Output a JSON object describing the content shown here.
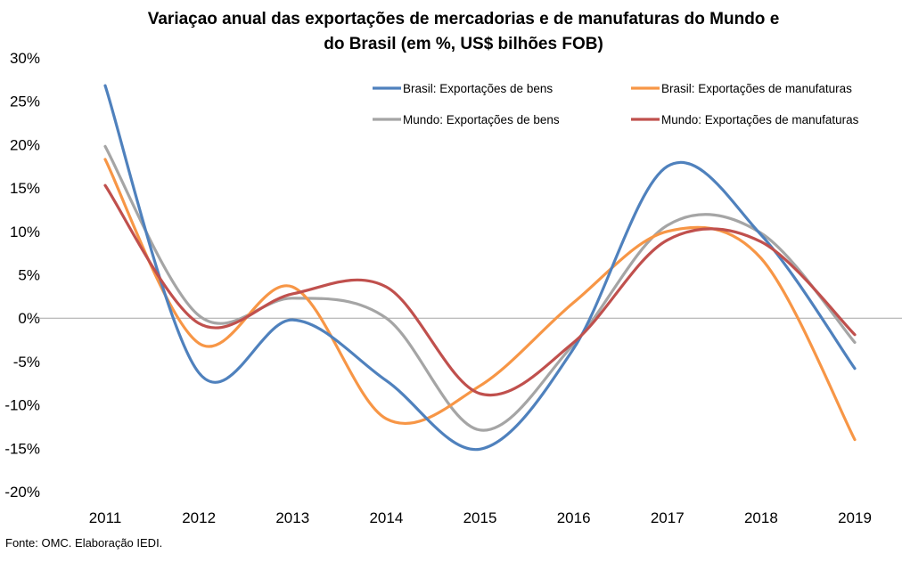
{
  "chart_data": {
    "type": "line",
    "title_line1": "Variaçao anual das exportações de mercadorias e de manufaturas do Mundo e",
    "title_line2": "do Brasil (em %, US$ bilhões FOB)",
    "categories": [
      "2011",
      "2012",
      "2013",
      "2014",
      "2015",
      "2016",
      "2017",
      "2018",
      "2019"
    ],
    "ylim": [
      -20,
      30
    ],
    "yticks": [
      "30%",
      "25%",
      "20%",
      "15%",
      "10%",
      "5%",
      "0%",
      "-5%",
      "-10%",
      "-15%",
      "-20%"
    ],
    "ytick_values": [
      30,
      25,
      20,
      15,
      10,
      5,
      0,
      -5,
      -10,
      -15,
      -20
    ],
    "legend_position": "top-right",
    "series": [
      {
        "name": "Brasil: Exportações de bens",
        "color": "#4f81bd",
        "values": [
          26.8,
          -6.3,
          -0.2,
          -7.2,
          -15.1,
          -3.5,
          17.5,
          9.6,
          -5.8
        ]
      },
      {
        "name": "Brasil: Exportações de manufaturas",
        "color": "#f79646",
        "values": [
          18.3,
          -2.9,
          3.6,
          -11.6,
          -7.8,
          1.8,
          10.0,
          6.9,
          -14.0
        ]
      },
      {
        "name": "Mundo: Exportações de bens",
        "color": "#a5a5a5",
        "values": [
          19.8,
          0.3,
          2.3,
          0.0,
          -12.9,
          -3.0,
          10.7,
          9.8,
          -2.8
        ]
      },
      {
        "name": "Mundo: Exportações de manufaturas",
        "color": "#c0504d",
        "values": [
          15.3,
          -0.6,
          2.8,
          3.6,
          -8.7,
          -2.8,
          9.0,
          8.8,
          -1.9
        ]
      }
    ]
  },
  "source_text": "Fonte: OMC. Elaboração IEDI."
}
